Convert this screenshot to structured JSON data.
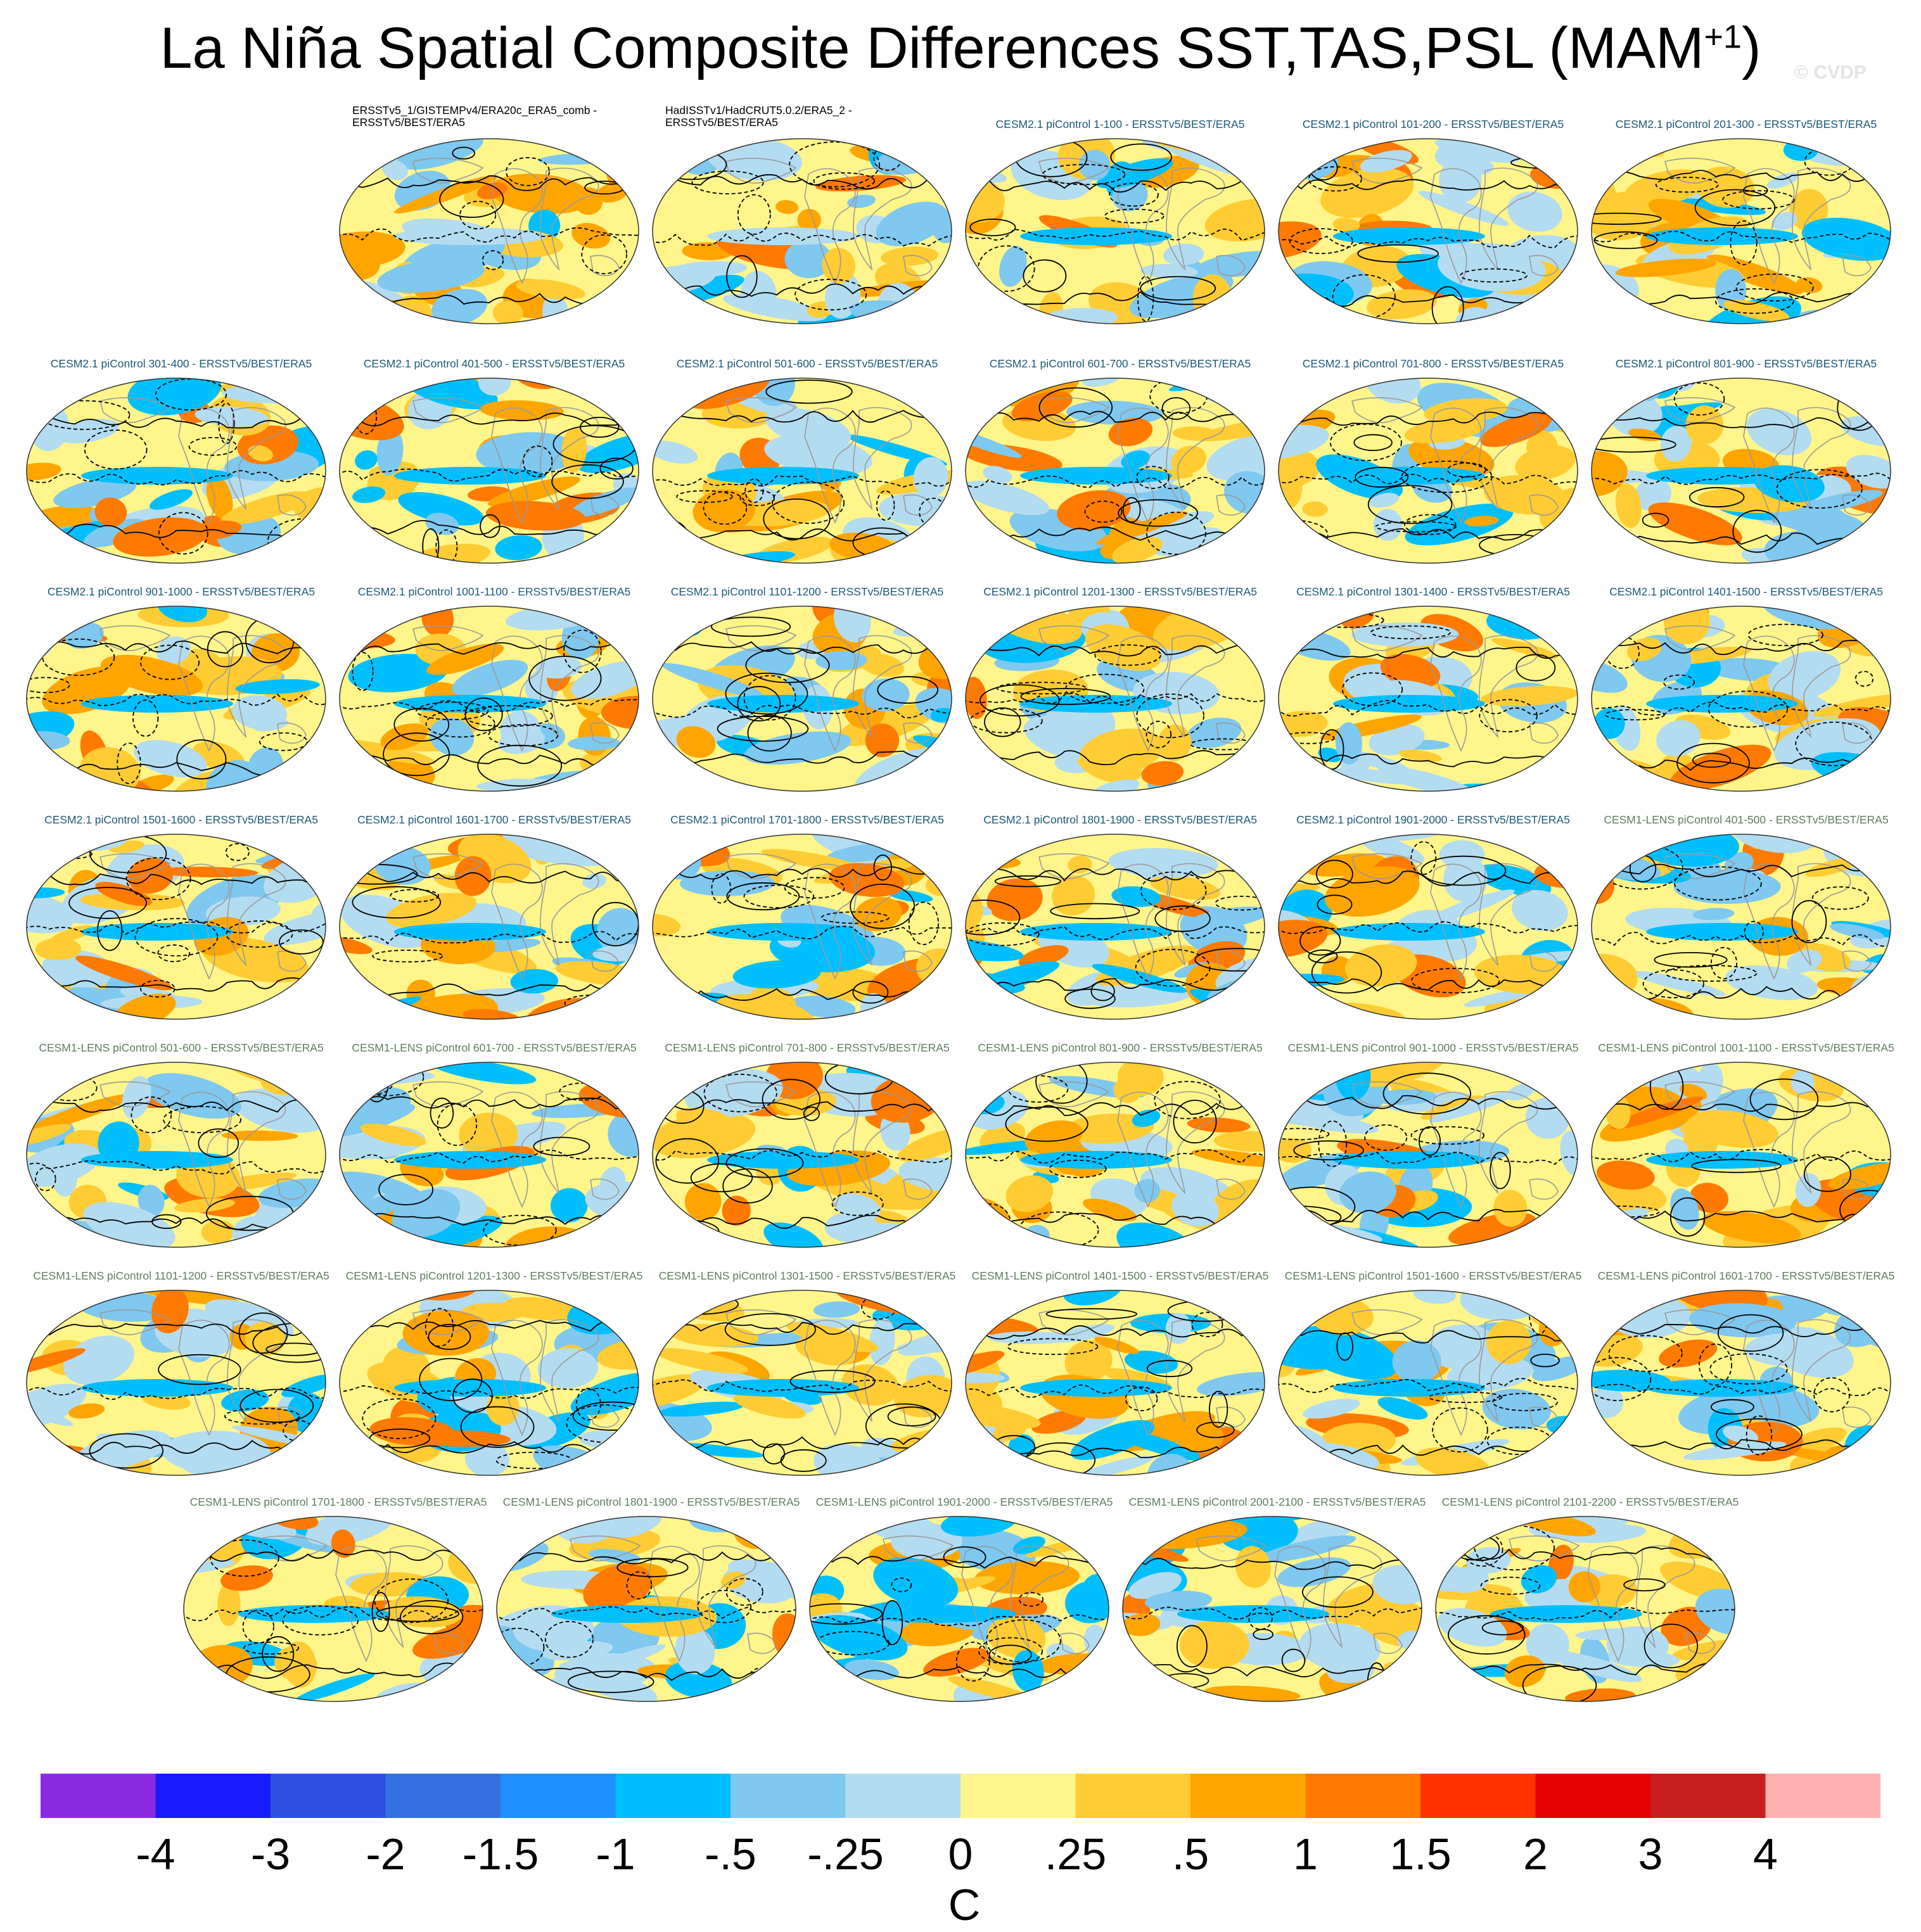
{
  "title": {
    "main": "La Niña Spatial Composite Differences SST,TAS,PSL (MAM",
    "superscript": "+1",
    "close": ")"
  },
  "watermark": "© CVDP",
  "panels": [
    {
      "label": [
        "ERSSTv5_1/GISTEMPv4/ERA20c_ERA5_comb -",
        "ERSSTv5/BEST/ERA5"
      ],
      "group": "obs"
    },
    {
      "label": [
        "HadISSTv1/HadCRUT5.0.2/ERA5_2 -",
        "ERSSTv5/BEST/ERA5"
      ],
      "group": "obs"
    },
    {
      "label": [
        "CESM2.1 piControl 1-100 - ERSSTv5/BEST/ERA5"
      ],
      "group": "cesm2"
    },
    {
      "label": [
        "CESM2.1 piControl 101-200 - ERSSTv5/BEST/ERA5"
      ],
      "group": "cesm2"
    },
    {
      "label": [
        "CESM2.1 piControl 201-300 - ERSSTv5/BEST/ERA5"
      ],
      "group": "cesm2"
    },
    {
      "label": [
        "CESM2.1 piControl 301-400 - ERSSTv5/BEST/ERA5"
      ],
      "group": "cesm2"
    },
    {
      "label": [
        "CESM2.1 piControl 401-500 - ERSSTv5/BEST/ERA5"
      ],
      "group": "cesm2"
    },
    {
      "label": [
        "CESM2.1 piControl 501-600 - ERSSTv5/BEST/ERA5"
      ],
      "group": "cesm2"
    },
    {
      "label": [
        "CESM2.1 piControl 601-700 - ERSSTv5/BEST/ERA5"
      ],
      "group": "cesm2"
    },
    {
      "label": [
        "CESM2.1 piControl 701-800 - ERSSTv5/BEST/ERA5"
      ],
      "group": "cesm2"
    },
    {
      "label": [
        "CESM2.1 piControl 801-900 - ERSSTv5/BEST/ERA5"
      ],
      "group": "cesm2"
    },
    {
      "label": [
        "CESM2.1 piControl 901-1000 - ERSSTv5/BEST/ERA5"
      ],
      "group": "cesm2"
    },
    {
      "label": [
        "CESM2.1 piControl 1001-1100 - ERSSTv5/BEST/ERA5"
      ],
      "group": "cesm2"
    },
    {
      "label": [
        "CESM2.1 piControl 1101-1200 - ERSSTv5/BEST/ERA5"
      ],
      "group": "cesm2"
    },
    {
      "label": [
        "CESM2.1 piControl 1201-1300 - ERSSTv5/BEST/ERA5"
      ],
      "group": "cesm2"
    },
    {
      "label": [
        "CESM2.1 piControl 1301-1400 - ERSSTv5/BEST/ERA5"
      ],
      "group": "cesm2"
    },
    {
      "label": [
        "CESM2.1 piControl 1401-1500 - ERSSTv5/BEST/ERA5"
      ],
      "group": "cesm2"
    },
    {
      "label": [
        "CESM2.1 piControl 1501-1600 - ERSSTv5/BEST/ERA5"
      ],
      "group": "cesm2"
    },
    {
      "label": [
        "CESM2.1 piControl 1601-1700 - ERSSTv5/BEST/ERA5"
      ],
      "group": "cesm2"
    },
    {
      "label": [
        "CESM2.1 piControl 1701-1800 - ERSSTv5/BEST/ERA5"
      ],
      "group": "cesm2"
    },
    {
      "label": [
        "CESM2.1 piControl 1801-1900 - ERSSTv5/BEST/ERA5"
      ],
      "group": "cesm2"
    },
    {
      "label": [
        "CESM2.1 piControl 1901-2000 - ERSSTv5/BEST/ERA5"
      ],
      "group": "cesm2"
    },
    {
      "label": [
        "CESM1-LENS piControl 401-500 - ERSSTv5/BEST/ERA5"
      ],
      "group": "cesm1"
    },
    {
      "label": [
        "CESM1-LENS piControl 501-600 - ERSSTv5/BEST/ERA5"
      ],
      "group": "cesm1"
    },
    {
      "label": [
        "CESM1-LENS piControl 601-700 - ERSSTv5/BEST/ERA5"
      ],
      "group": "cesm1"
    },
    {
      "label": [
        "CESM1-LENS piControl 701-800 - ERSSTv5/BEST/ERA5"
      ],
      "group": "cesm1"
    },
    {
      "label": [
        "CESM1-LENS piControl 801-900 - ERSSTv5/BEST/ERA5"
      ],
      "group": "cesm1"
    },
    {
      "label": [
        "CESM1-LENS piControl 901-1000 - ERSSTv5/BEST/ERA5"
      ],
      "group": "cesm1"
    },
    {
      "label": [
        "CESM1-LENS piControl 1001-1100 - ERSSTv5/BEST/ERA5"
      ],
      "group": "cesm1"
    },
    {
      "label": [
        "CESM1-LENS piControl 1101-1200 - ERSSTv5/BEST/ERA5"
      ],
      "group": "cesm1"
    },
    {
      "label": [
        "CESM1-LENS piControl 1201-1300 - ERSSTv5/BEST/ERA5"
      ],
      "group": "cesm1"
    },
    {
      "label": [
        "CESM1-LENS piControl 1301-1500 - ERSSTv5/BEST/ERA5"
      ],
      "group": "cesm1"
    },
    {
      "label": [
        "CESM1-LENS piControl 1401-1500 - ERSSTv5/BEST/ERA5"
      ],
      "group": "cesm1"
    },
    {
      "label": [
        "CESM1-LENS piControl 1501-1600 - ERSSTv5/BEST/ERA5"
      ],
      "group": "cesm1"
    },
    {
      "label": [
        "CESM1-LENS piControl 1601-1700 - ERSSTv5/BEST/ERA5"
      ],
      "group": "cesm1"
    },
    {
      "label": [
        "CESM1-LENS piControl 1701-1800 - ERSSTv5/BEST/ERA5"
      ],
      "group": "cesm1"
    },
    {
      "label": [
        "CESM1-LENS piControl 1801-1900 - ERSSTv5/BEST/ERA5"
      ],
      "group": "cesm1"
    },
    {
      "label": [
        "CESM1-LENS piControl 1901-2000 - ERSSTv5/BEST/ERA5"
      ],
      "group": "cesm1"
    },
    {
      "label": [
        "CESM1-LENS piControl 2001-2100 - ERSSTv5/BEST/ERA5"
      ],
      "group": "cesm1"
    },
    {
      "label": [
        "CESM1-LENS piControl 2101-2200 - ERSSTv5/BEST/ERA5"
      ],
      "group": "cesm1"
    }
  ],
  "label_colors": {
    "obs": "#000000",
    "cesm2": "#1c5a7a",
    "cesm1": "#5f7f5f"
  },
  "colorbar": {
    "colors": [
      "#8a2be2",
      "#1a1aff",
      "#2e4fe0",
      "#3370e0",
      "#1e90ff",
      "#00bfff",
      "#7fc8f0",
      "#b4dcf0",
      "#fff58a",
      "#ffcc33",
      "#ffa500",
      "#ff7a00",
      "#ff3300",
      "#e60000",
      "#c81e1e",
      "#ffb0b0"
    ],
    "ticks": [
      "-4",
      "-3",
      "-2",
      "-1.5",
      "-1",
      "-.5",
      "-.25",
      "0",
      ".25",
      ".5",
      "1",
      "1.5",
      "2",
      "3",
      "4"
    ],
    "units": "C"
  },
  "chart_data": {
    "type": "heatmap",
    "title": "La Niña Spatial Composite Differences SST,TAS,PSL (MAM+1)",
    "variables": [
      "SST",
      "TAS",
      "PSL"
    ],
    "season": "MAM+1",
    "reference": "ERSSTv5/BEST/ERA5",
    "panel_count": 40,
    "colorbar_levels": [
      -4,
      -3,
      -2,
      -1.5,
      -1,
      -0.5,
      -0.25,
      0,
      0.25,
      0.5,
      1,
      1.5,
      2,
      3,
      4
    ],
    "units": "C"
  }
}
